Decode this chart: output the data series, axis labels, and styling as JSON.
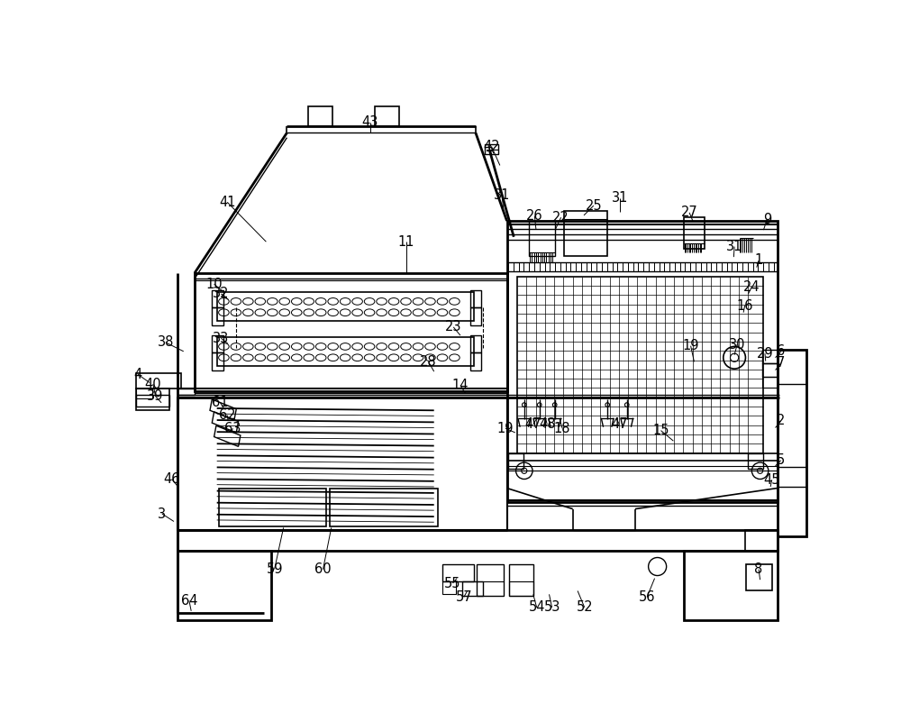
{
  "fig_width": 10.0,
  "fig_height": 7.91,
  "dpi": 100,
  "bg": "#ffffff",
  "lc": "#000000"
}
